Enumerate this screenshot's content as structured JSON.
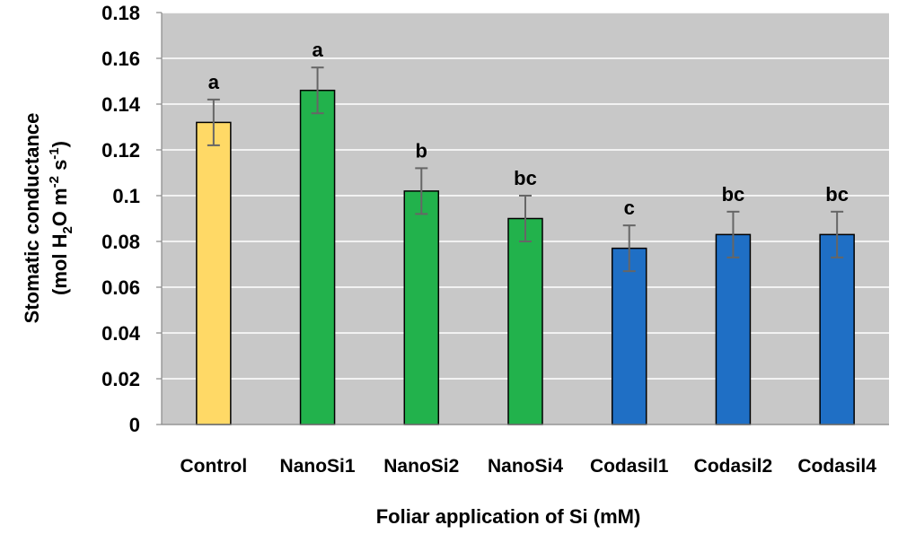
{
  "chart_data": {
    "type": "bar",
    "title": "",
    "xlabel": "Foliar application of Si (mM)",
    "ylabel": {
      "line1": "Stomatic conductance",
      "line2_prefix": "(mol H",
      "line2_sub": "2",
      "line2_mid": "O m",
      "line2_sup1": "-2",
      "line2_mid2": " s",
      "line2_sup2": "-1",
      "line2_suffix": ")"
    },
    "ylim": [
      0,
      0.18
    ],
    "yticks": [
      "0",
      "0.02",
      "0.04",
      "0.06",
      "0.08",
      "0.1",
      "0.12",
      "0.14",
      "0.16",
      "0.18"
    ],
    "categories": [
      "Control",
      "NanoSi1",
      "NanoSi2",
      "NanoSi4",
      "Codasil1",
      "Codasil2",
      "Codasil4"
    ],
    "values": [
      0.132,
      0.146,
      0.102,
      0.09,
      0.077,
      0.083,
      0.083
    ],
    "errors": [
      0.01,
      0.01,
      0.01,
      0.01,
      0.01,
      0.01,
      0.01
    ],
    "significance": [
      "a",
      "a",
      "b",
      "bc",
      "c",
      "bc",
      "bc"
    ],
    "bar_colors": [
      "#FFD966",
      "#22B24C",
      "#22B24C",
      "#22B24C",
      "#1F6FC5",
      "#1F6FC5",
      "#1F6FC5"
    ],
    "plot_background": "#C8C8C8",
    "grid": true,
    "gridline_color": "#FFFFFF",
    "errorbar_color": "#666666",
    "legend": "none"
  }
}
